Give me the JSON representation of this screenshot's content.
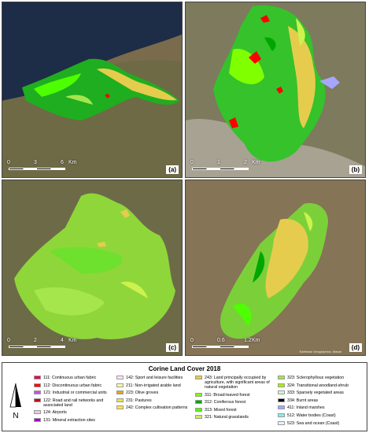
{
  "panels": [
    {
      "label": "(a)",
      "scale": [
        "0",
        "3",
        "6",
        "Km"
      ]
    },
    {
      "label": "(b)",
      "scale": [
        "0",
        "1",
        "2",
        "Km"
      ]
    },
    {
      "label": "(c)",
      "scale": [
        "0",
        "2",
        "4",
        "Km"
      ]
    },
    {
      "label": "(d)",
      "scale": [
        "0",
        "0.6",
        "1.2",
        "Km"
      ]
    }
  ],
  "attribution": "Earthstar Geographics, Maxar",
  "legend": {
    "title": "Corine Land Cover 2018",
    "north": "N",
    "columns": [
      [
        {
          "label": "111: Continuous urban fabric",
          "color": "#e6004d"
        },
        {
          "label": "112: Discontinuous urban fabric",
          "color": "#ff0000"
        },
        {
          "label": "121: Industrial or commercial units",
          "color": "#cc4df2"
        },
        {
          "label": "122: Road and rail networks and associated land",
          "color": "#cc0000"
        },
        {
          "label": "124: Airports",
          "color": "#e6cce6"
        },
        {
          "label": "131: Mineral extraction sites",
          "color": "#a600cc"
        }
      ],
      [
        {
          "label": "142: Sport and leisure facilities",
          "color": "#ffe6ff"
        },
        {
          "label": "211: Non-irrigated arable land",
          "color": "#ffffa8"
        },
        {
          "label": "223: Olive groves",
          "color": "#e6a600"
        },
        {
          "label": "231: Pastures",
          "color": "#e6e64d"
        },
        {
          "label": "242: Complex cultivation patterns",
          "color": "#ffe64d"
        }
      ],
      [
        {
          "label": "243: Land principally occupied by agriculture, with significant areas of natural vegetation",
          "color": "#e6cc4d"
        },
        {
          "label": "311: Broad-leaved forest",
          "color": "#80ff00"
        },
        {
          "label": "312: Coniferous forest",
          "color": "#00a600"
        },
        {
          "label": "313: Mixed forest",
          "color": "#4dff00"
        },
        {
          "label": "321: Natural grasslands",
          "color": "#ccf24d"
        }
      ],
      [
        {
          "label": "323: Sclerophyllous vegetation",
          "color": "#a6e64d"
        },
        {
          "label": "324: Transitional woodland-shrub",
          "color": "#a6f200"
        },
        {
          "label": "333: Sparsely vegetated areas",
          "color": "#ccffcc"
        },
        {
          "label": "334: Burnt areas",
          "color": "#000000"
        },
        {
          "label": "411: Inland marshes",
          "color": "#a6a6ff"
        },
        {
          "label": "512: Water bodies (Coast)",
          "color": "#80f2e6"
        },
        {
          "label": "523: Sea and ocean (Coast)",
          "color": "#e6f2ff"
        }
      ]
    ]
  }
}
